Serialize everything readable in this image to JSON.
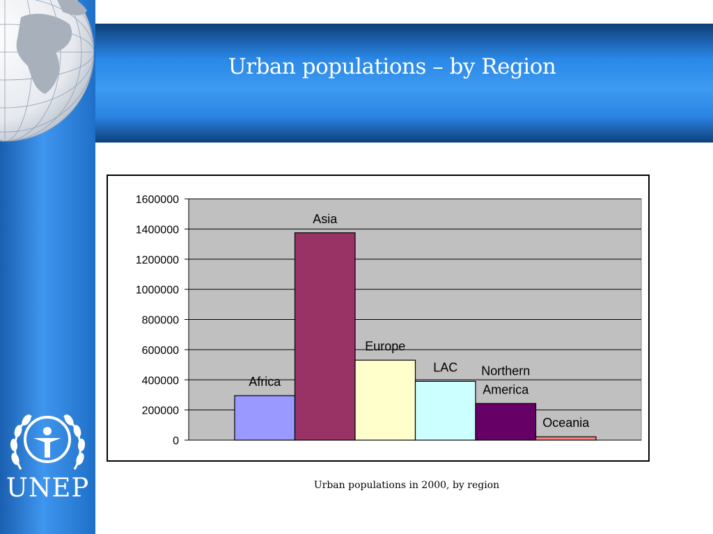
{
  "slide": {
    "title": "Urban populations – by Region",
    "caption": "Urban populations in 2000, by region",
    "logo_text": "UNEP"
  },
  "colors": {
    "plot_bg": "#c0c0c0",
    "sidebar": "#3f96ee",
    "banner": "#2a88e8"
  },
  "chart_data": {
    "type": "bar",
    "categories": [
      "Africa",
      "Asia",
      "Europe",
      "LAC",
      "Northern America",
      "Oceania"
    ],
    "values": [
      295000,
      1375000,
      530000,
      390000,
      243000,
      22000
    ],
    "bar_colors": [
      "#9999ff",
      "#993366",
      "#ffffcc",
      "#ccffff",
      "#660066",
      "#ff8080"
    ],
    "ylim": [
      0,
      1600000
    ],
    "y_ticks": [
      "0",
      "200000",
      "400000",
      "600000",
      "800000",
      "1000000",
      "1200000",
      "1400000",
      "1600000"
    ],
    "grid": true,
    "legend": "none"
  }
}
